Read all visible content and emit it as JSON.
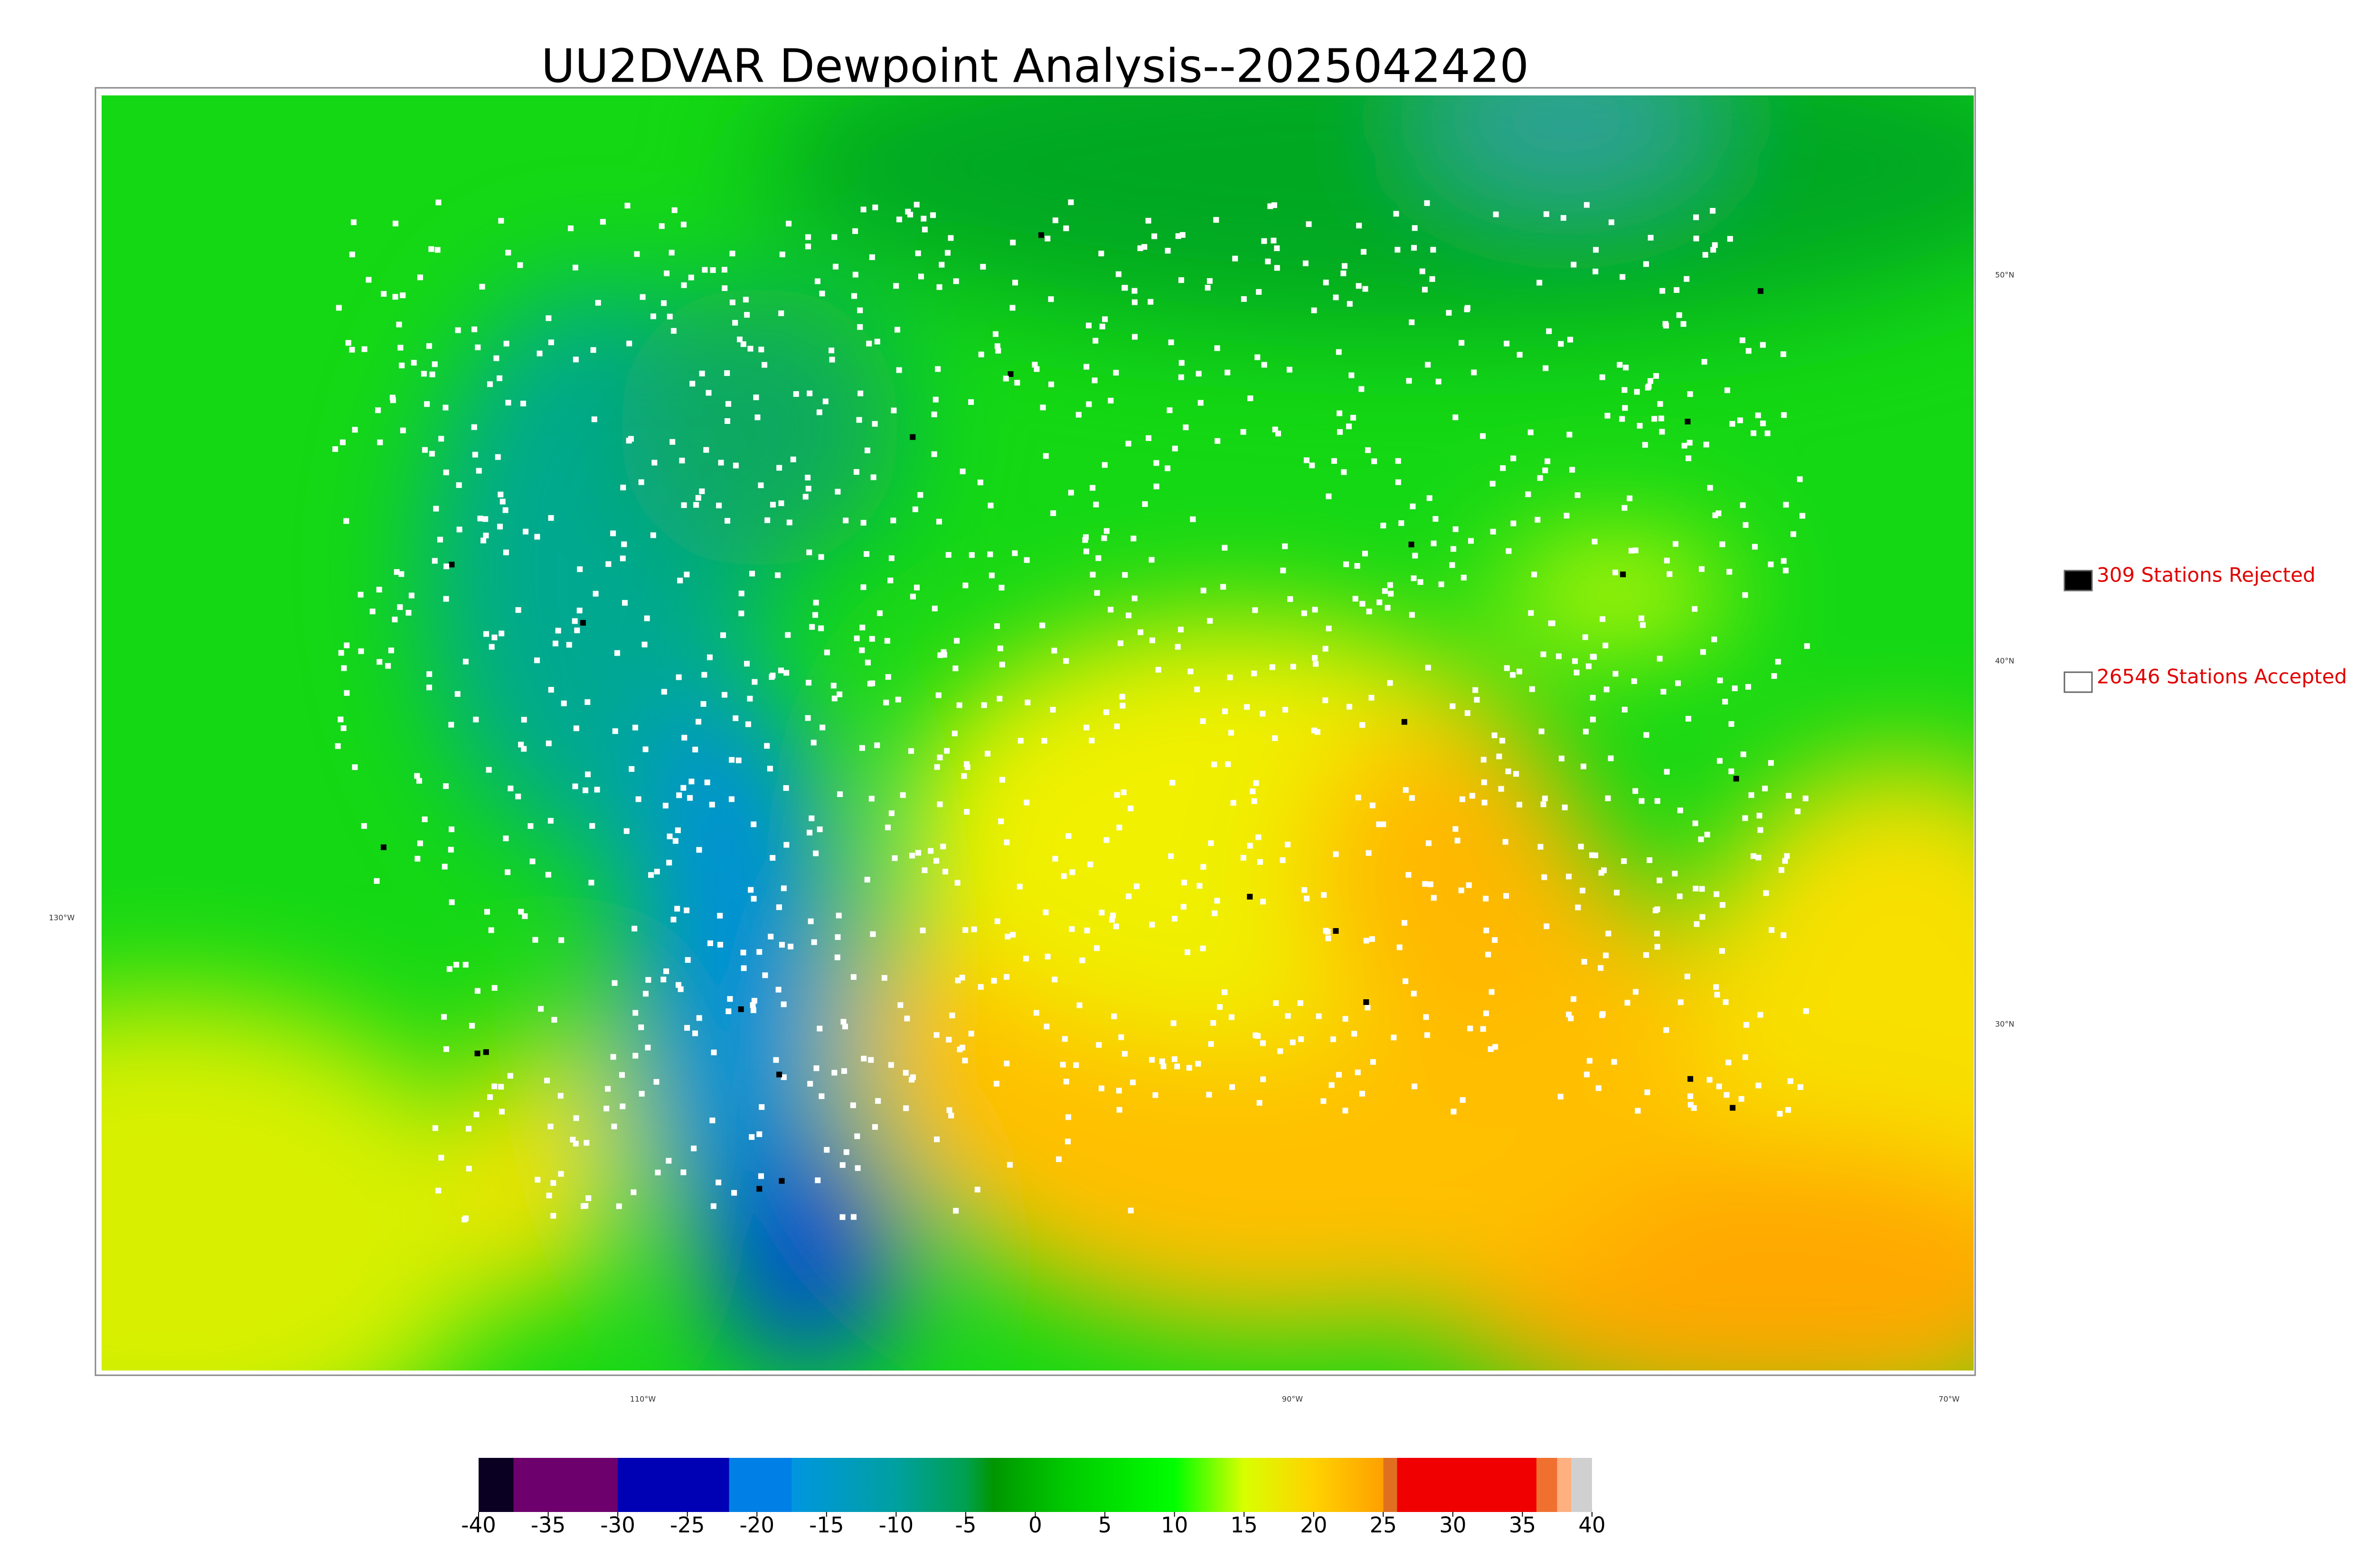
{
  "title": "UU2DVAR Dewpoint Analysis--2025042420",
  "latitude_labels": [
    "50°N",
    "40°N",
    "30°N"
  ],
  "longitude_labels": [
    "130°W",
    "110°W",
    "90°W",
    "70°W"
  ],
  "legend": [
    {
      "label": "309 Stations Rejected",
      "color": "#000000"
    },
    {
      "label": "26546 Stations Accepted",
      "color": "#ffffff"
    }
  ],
  "colorbar": {
    "lim": [
      -40,
      40
    ],
    "ticks": [
      -40,
      -35,
      -30,
      -25,
      -20,
      -15,
      -10,
      -5,
      0,
      5,
      10,
      15,
      20,
      25,
      30,
      35,
      40
    ],
    "stops": [
      {
        "value": -40,
        "color": "#0a0022"
      },
      {
        "value": -37.5,
        "color": "#0a0022"
      },
      {
        "value": -37.5,
        "color": "#6e006e"
      },
      {
        "value": -30,
        "color": "#6e006e"
      },
      {
        "value": -30,
        "color": "#0000b4"
      },
      {
        "value": -22,
        "color": "#0000b4"
      },
      {
        "value": -22,
        "color": "#0080e6"
      },
      {
        "value": -17.5,
        "color": "#0080e6"
      },
      {
        "value": -17.5,
        "color": "#0096e0"
      },
      {
        "value": -10,
        "color": "#00a0a0"
      },
      {
        "value": -5,
        "color": "#00a050"
      },
      {
        "value": -3,
        "color": "#009600"
      },
      {
        "value": 2,
        "color": "#00c800"
      },
      {
        "value": 10,
        "color": "#00ff00"
      },
      {
        "value": 15,
        "color": "#d8ff00"
      },
      {
        "value": 20,
        "color": "#ffd200"
      },
      {
        "value": 25,
        "color": "#ffa000"
      },
      {
        "value": 25,
        "color": "#e07020"
      },
      {
        "value": 26,
        "color": "#e07020"
      },
      {
        "value": 26,
        "color": "#f00000"
      },
      {
        "value": 36,
        "color": "#f00000"
      },
      {
        "value": 36,
        "color": "#f07030"
      },
      {
        "value": 37.5,
        "color": "#f07030"
      },
      {
        "value": 37.5,
        "color": "#ffb080"
      },
      {
        "value": 38.5,
        "color": "#ffb080"
      },
      {
        "value": 38.5,
        "color": "#d0d0d0"
      },
      {
        "value": 40,
        "color": "#d0d0d0"
      }
    ]
  }
}
